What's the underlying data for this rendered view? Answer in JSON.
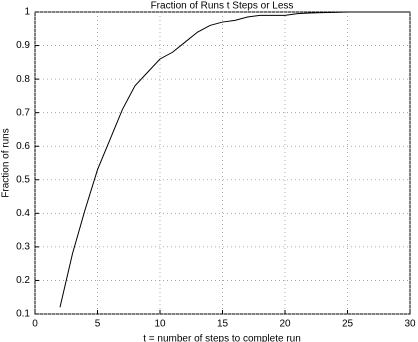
{
  "chart_data": {
    "type": "line",
    "title": "Fraction of Runs t Steps or Less",
    "x_label": "t = number of steps to complete run",
    "y_label": "Fraction of runs",
    "x": [
      2,
      3,
      4,
      5,
      6,
      7,
      8,
      9,
      10,
      11,
      12,
      13,
      14,
      15,
      16,
      17,
      18,
      19,
      20,
      21,
      22,
      23,
      24,
      25,
      26,
      27,
      28,
      29,
      30
    ],
    "series": [
      {
        "color": "#000000",
        "values": [
          0.12,
          0.28,
          0.41,
          0.53,
          0.62,
          0.71,
          0.78,
          0.82,
          0.86,
          0.88,
          0.91,
          0.94,
          0.96,
          0.97,
          0.975,
          0.985,
          0.99,
          0.99,
          0.99,
          0.995,
          0.997,
          0.998,
          0.999,
          1,
          1,
          1,
          1,
          1,
          1
        ]
      }
    ],
    "xlim": [
      0,
      30
    ],
    "xticks": [
      0,
      5,
      10,
      15,
      20,
      25,
      30
    ],
    "ylim": [
      0.1,
      1
    ],
    "yticks": [
      0.1,
      0.2,
      0.3,
      0.4,
      0.5,
      0.6,
      0.7,
      0.8,
      0.9,
      1
    ],
    "grid": true
  }
}
